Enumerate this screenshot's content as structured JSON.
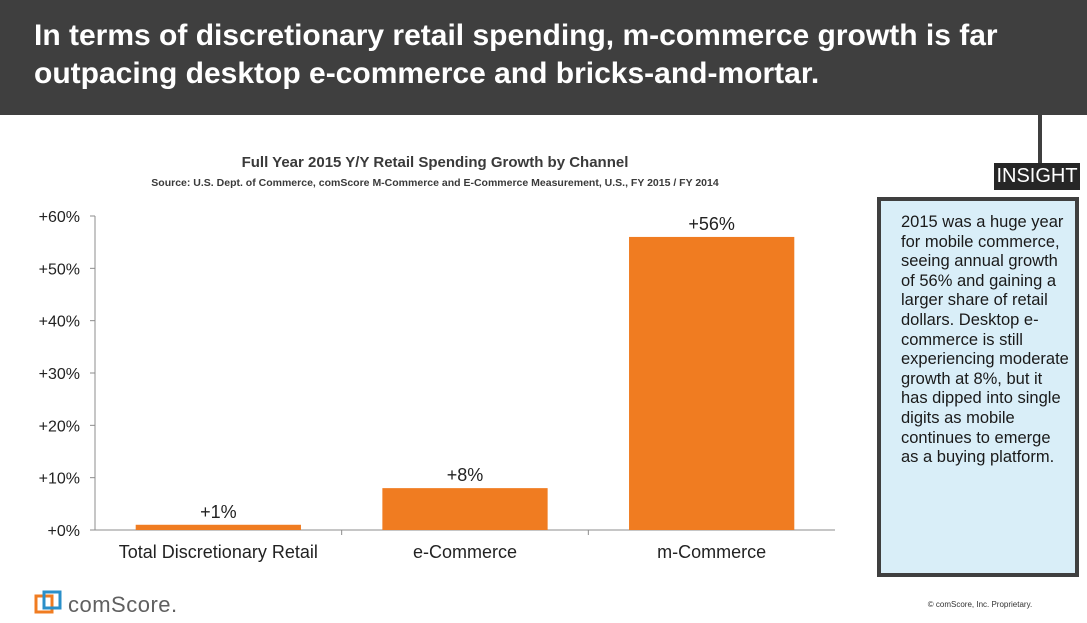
{
  "header": {
    "headline": "In terms of discretionary retail spending, m-commerce growth is far outpacing desktop e-commerce and bricks-and-mortar."
  },
  "insight": {
    "tag": "INSIGHT",
    "text": "2015 was a huge year for mobile commerce, seeing annual growth of 56% and gaining a larger share of retail dollars. Desktop e-commerce is still experiencing moderate growth at 8%, but it has dipped into single digits as mobile continues to emerge as a buying platform."
  },
  "footer": {
    "logo_text": "comScore.",
    "copyright": "© comScore, Inc. Proprietary."
  },
  "colors": {
    "bar": "#f07c21",
    "header_bg": "#3f3f3f",
    "insight_bg": "#d9eef8"
  },
  "chart_data": {
    "type": "bar",
    "title": "Full Year 2015 Y/Y Retail Spending Growth by Channel",
    "subtitle": "Source: U.S. Dept. of Commerce, comScore M-Commerce and E-Commerce Measurement, U.S., FY 2015 / FY 2014",
    "categories": [
      "Total Discretionary Retail",
      "e-Commerce",
      "m-Commerce"
    ],
    "values": [
      1,
      8,
      56
    ],
    "data_labels": [
      "+1%",
      "+8%",
      "+56%"
    ],
    "y_ticks": [
      0,
      10,
      20,
      30,
      40,
      50,
      60
    ],
    "y_tick_labels": [
      "+0%",
      "+10%",
      "+20%",
      "+30%",
      "+40%",
      "+50%",
      "+60%"
    ],
    "ylim": [
      0,
      60
    ],
    "xlabel": "",
    "ylabel": "",
    "grid": false,
    "legend": "none"
  }
}
